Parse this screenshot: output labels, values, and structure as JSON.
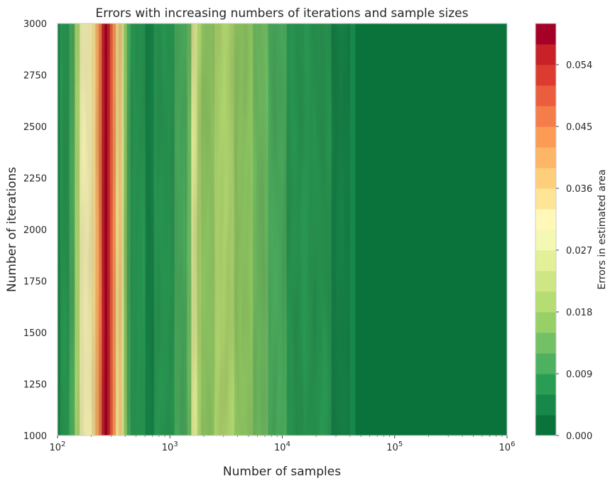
{
  "chart_data": {
    "type": "heatmap",
    "title": "Errors with increasing numbers of iterations and sample sizes",
    "xlabel": "Number of samples",
    "ylabel": "Number of iterations",
    "x_scale": "log",
    "xlim": [
      100,
      1000000
    ],
    "ylim": [
      1000,
      3000
    ],
    "x_ticks": [
      {
        "value": 100,
        "base": "10",
        "exp": "2"
      },
      {
        "value": 1000,
        "base": "10",
        "exp": "3"
      },
      {
        "value": 10000,
        "base": "10",
        "exp": "4"
      },
      {
        "value": 100000,
        "base": "10",
        "exp": "5"
      },
      {
        "value": 1000000,
        "base": "10",
        "exp": "6"
      }
    ],
    "y_ticks": [
      "1000",
      "1250",
      "1500",
      "1750",
      "2000",
      "2250",
      "2500",
      "2750",
      "3000"
    ],
    "y_tick_values": [
      1000,
      1250,
      1500,
      1750,
      2000,
      2250,
      2500,
      2750,
      3000
    ],
    "colorbar": {
      "label": "Errors in estimated area",
      "ticks": [
        "0.000",
        "0.009",
        "0.018",
        "0.027",
        "0.036",
        "0.045",
        "0.054"
      ],
      "tick_values": [
        0.0,
        0.009,
        0.018,
        0.027,
        0.036,
        0.045,
        0.054
      ],
      "range": [
        0.0,
        0.06
      ],
      "levels": 20,
      "colormap": "RdYlGn_r",
      "colors": [
        "#0a733c",
        "#17874a",
        "#2a9d55",
        "#4db160",
        "#73c164",
        "#96d067",
        "#b5dd72",
        "#cee784",
        "#e3f097",
        "#f4f8b2",
        "#fff8b8",
        "#fee595",
        "#fdcf7c",
        "#fdb567",
        "#fb9b56",
        "#f57d4a",
        "#ea5e3e",
        "#dc3c2f",
        "#c82228",
        "#a50026"
      ]
    },
    "x_values": [
      100,
      110,
      120,
      135,
      150,
      165,
      180,
      195,
      210,
      225,
      240,
      255,
      270,
      285,
      300,
      320,
      340,
      360,
      380,
      400,
      430,
      460,
      500,
      560,
      650,
      800,
      1000,
      1200,
      1350,
      1500,
      1600,
      1700,
      1800,
      2000,
      2300,
      2700,
      3000,
      3500,
      4000,
      5000,
      6000,
      7000,
      8000,
      9000,
      10000,
      12000,
      15000,
      20000,
      25000,
      30000,
      35000,
      40000,
      50000,
      100000,
      200000,
      1000000
    ],
    "errors_by_x": [
      0.004,
      0.006,
      0.008,
      0.01,
      0.02,
      0.028,
      0.031,
      0.03,
      0.035,
      0.041,
      0.047,
      0.054,
      0.058,
      0.056,
      0.05,
      0.043,
      0.034,
      0.036,
      0.024,
      0.015,
      0.01,
      0.008,
      0.006,
      0.008,
      0.005,
      0.007,
      0.008,
      0.009,
      0.01,
      0.012,
      0.024,
      0.026,
      0.02,
      0.016,
      0.017,
      0.018,
      0.02,
      0.019,
      0.017,
      0.015,
      0.013,
      0.012,
      0.011,
      0.01,
      0.009,
      0.008,
      0.008,
      0.007,
      0.006,
      0.005,
      0.004,
      0.003,
      0.002,
      0.002,
      0.001,
      0.001
    ]
  }
}
